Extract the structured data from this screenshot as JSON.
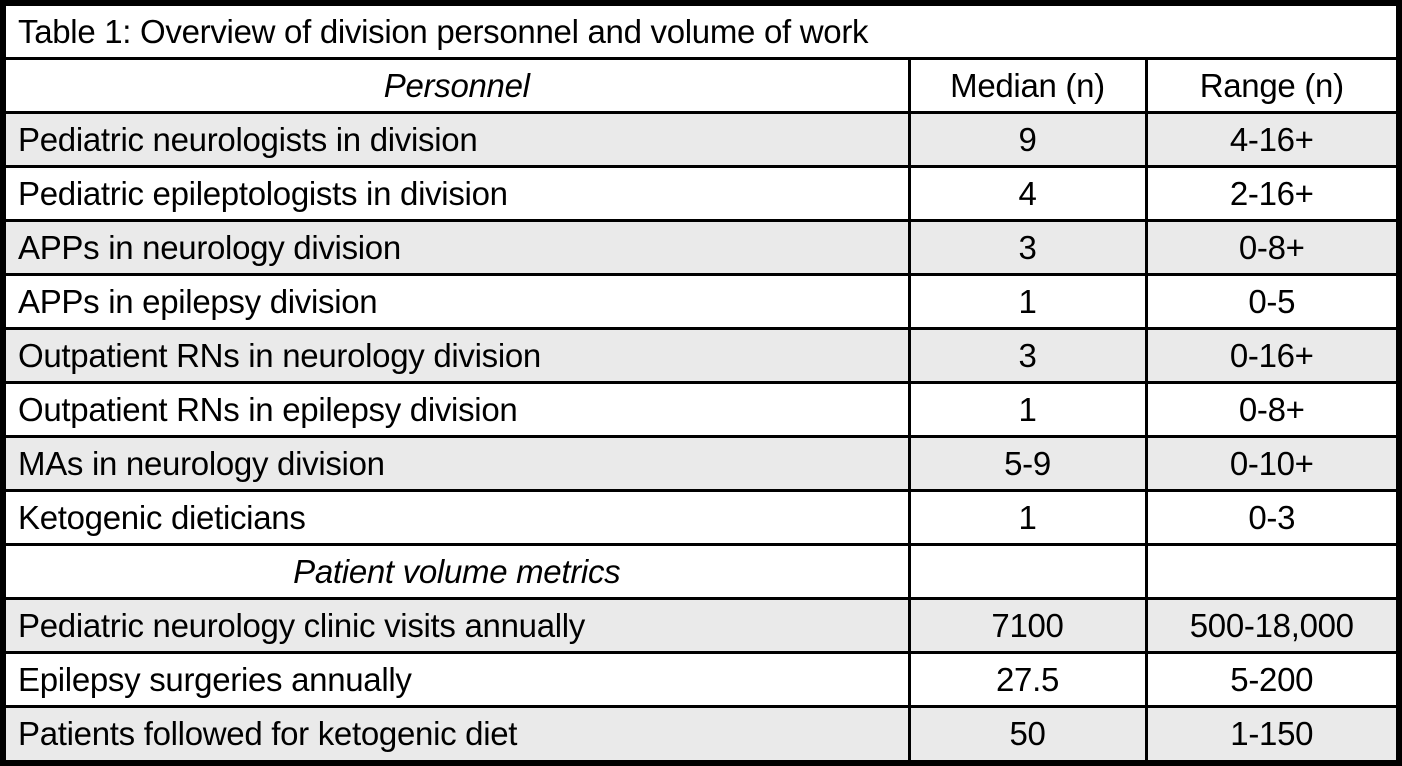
{
  "table": {
    "title": "Table 1: Overview of division personnel and volume of work",
    "columns": {
      "personnel": "Personnel",
      "median": "Median (n)",
      "range": "Range (n)"
    },
    "rows": [
      {
        "type": "data",
        "label": "Pediatric neurologists in division",
        "median": "9",
        "range": "4-16+"
      },
      {
        "type": "data",
        "label": "Pediatric epileptologists in division",
        "median": "4",
        "range": "2-16+"
      },
      {
        "type": "data",
        "label": "APPs in neurology division",
        "median": "3",
        "range": "0-8+"
      },
      {
        "type": "data",
        "label": "APPs in epilepsy division",
        "median": "1",
        "range": "0-5"
      },
      {
        "type": "data",
        "label": "Outpatient RNs in neurology division",
        "median": "3",
        "range": "0-16+"
      },
      {
        "type": "data",
        "label": "Outpatient RNs in epilepsy division",
        "median": "1",
        "range": "0-8+"
      },
      {
        "type": "data",
        "label": "MAs in neurology division",
        "median": "5-9",
        "range": "0-10+"
      },
      {
        "type": "data",
        "label": "Ketogenic dieticians",
        "median": "1",
        "range": "0-3"
      },
      {
        "type": "section",
        "label": "Patient volume metrics",
        "median": "",
        "range": ""
      },
      {
        "type": "data",
        "label": "Pediatric neurology clinic visits annually",
        "median": "7100",
        "range": "500-18,000"
      },
      {
        "type": "data",
        "label": "Epilepsy surgeries annually",
        "median": "27.5",
        "range": "5-200"
      },
      {
        "type": "data",
        "label": "Patients followed for ketogenic diet",
        "median": "50",
        "range": "1-150"
      }
    ],
    "colors": {
      "row_shade": "#eaeaea",
      "border": "#000000",
      "text": "#000000",
      "background": "#ffffff"
    }
  }
}
